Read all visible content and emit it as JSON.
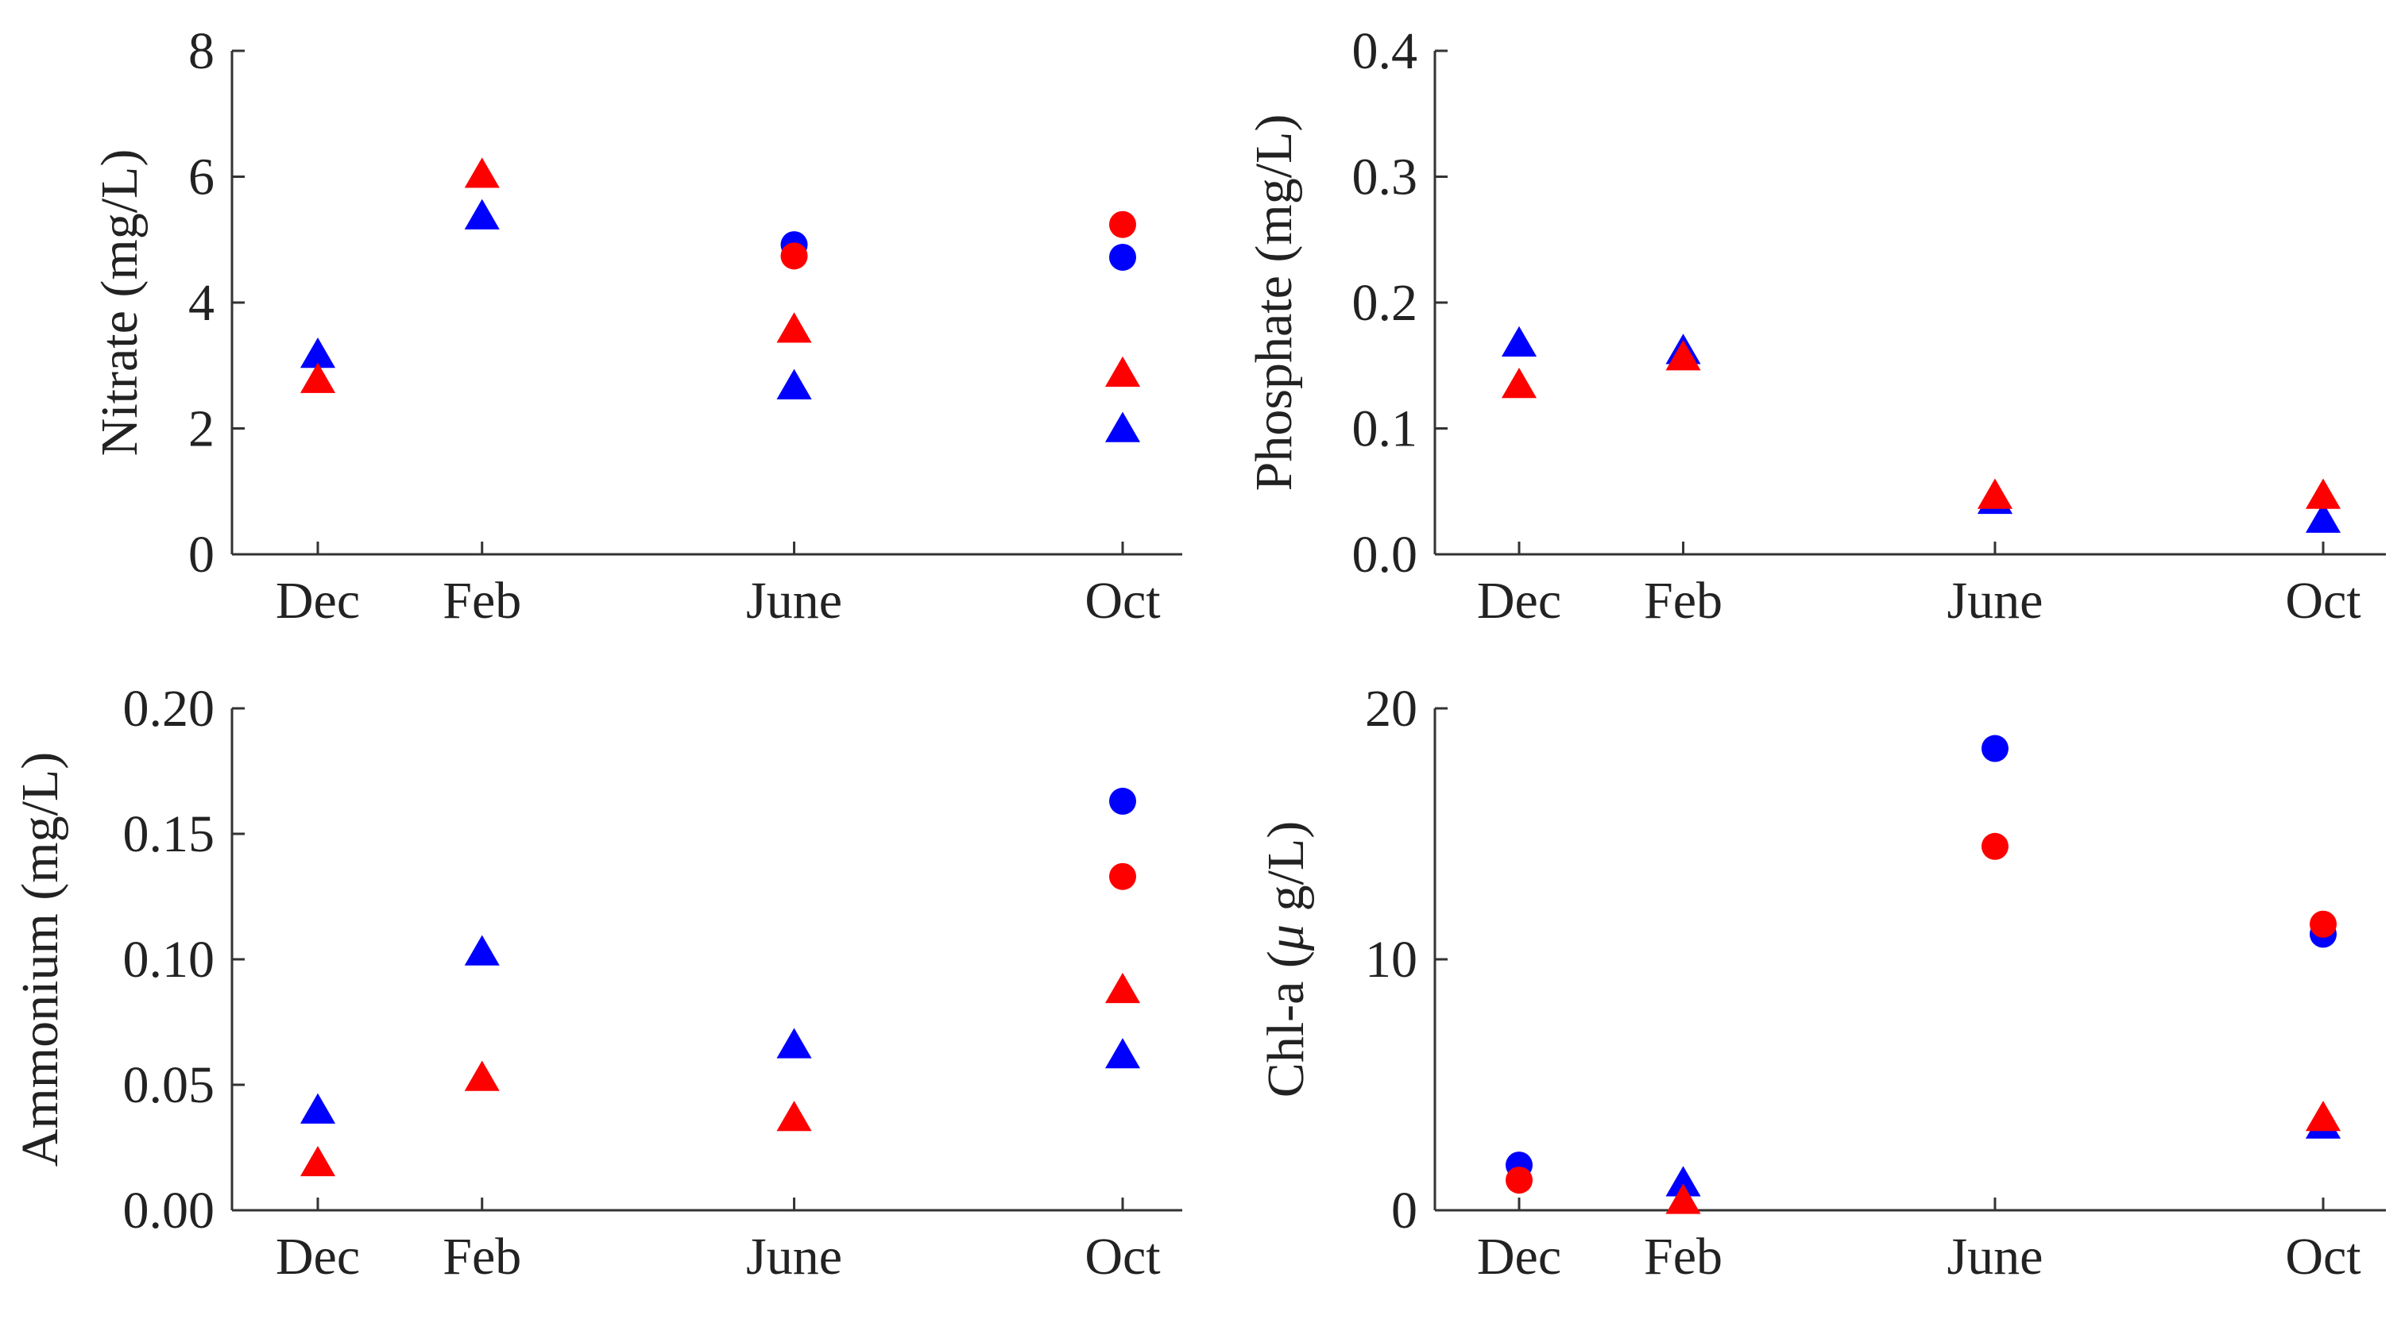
{
  "chart_data": [
    {
      "type": "scatter",
      "panel": "nitrate",
      "ylabel": "Nitrate (mg/L)",
      "ylabel_unit_italic": "",
      "categories": [
        "Dec",
        "Feb",
        "June",
        "Oct"
      ],
      "category_positions": [
        0,
        1,
        2.9,
        4.9
      ],
      "ylim": [
        0,
        8
      ],
      "yticks": [
        "0",
        "2",
        "4",
        "6",
        "8"
      ],
      "ytick_values": [
        0,
        2,
        4,
        6,
        8
      ],
      "series": [
        {
          "marker": "circle",
          "color": "#0000ff",
          "points": [
            [
              2.9,
              4.92
            ],
            [
              4.9,
              4.72
            ]
          ]
        },
        {
          "marker": "circle",
          "color": "#ff0000",
          "points": [
            [
              2.9,
              4.74
            ],
            [
              4.9,
              5.24
            ]
          ]
        },
        {
          "marker": "triangle",
          "color": "#0000ff",
          "points": [
            [
              0,
              3.18
            ],
            [
              1,
              5.38
            ],
            [
              2.9,
              2.68
            ],
            [
              4.9,
              2.0
            ]
          ]
        },
        {
          "marker": "triangle",
          "color": "#ff0000",
          "points": [
            [
              0,
              2.78
            ],
            [
              1,
              6.04
            ],
            [
              2.9,
              3.58
            ],
            [
              4.9,
              2.88
            ]
          ]
        }
      ]
    },
    {
      "type": "scatter",
      "panel": "phosphate",
      "ylabel": "Phosphate (mg/L)",
      "categories": [
        "Dec",
        "Feb",
        "June",
        "Oct"
      ],
      "category_positions": [
        0,
        1,
        2.9,
        4.9
      ],
      "ylim": [
        0,
        0.4
      ],
      "yticks": [
        "0.0",
        "0.1",
        "0.2",
        "0.3",
        "0.4"
      ],
      "ytick_values": [
        0,
        0.1,
        0.2,
        0.3,
        0.4
      ],
      "series": [
        {
          "marker": "triangle",
          "color": "#0000ff",
          "points": [
            [
              0,
              0.168
            ],
            [
              1,
              0.162
            ],
            [
              2.9,
              0.043
            ],
            [
              4.9,
              0.028
            ]
          ]
        },
        {
          "marker": "triangle",
          "color": "#ff0000",
          "points": [
            [
              0,
              0.135
            ],
            [
              1,
              0.157
            ],
            [
              2.9,
              0.047
            ],
            [
              4.9,
              0.047
            ]
          ]
        }
      ]
    },
    {
      "type": "scatter",
      "panel": "ammonium",
      "ylabel": "Ammonium (mg/L)",
      "categories": [
        "Dec",
        "Feb",
        "June",
        "Oct"
      ],
      "category_positions": [
        0,
        1,
        2.9,
        4.9
      ],
      "ylim": [
        0,
        0.2
      ],
      "yticks": [
        "0.00",
        "0.05",
        "0.10",
        "0.15",
        "0.20"
      ],
      "ytick_values": [
        0,
        0.05,
        0.1,
        0.15,
        0.2
      ],
      "series": [
        {
          "marker": "circle",
          "color": "#0000ff",
          "points": [
            [
              4.9,
              0.163
            ]
          ]
        },
        {
          "marker": "circle",
          "color": "#ff0000",
          "points": [
            [
              4.9,
              0.133
            ]
          ]
        },
        {
          "marker": "triangle",
          "color": "#0000ff",
          "points": [
            [
              0,
              0.04
            ],
            [
              1,
              0.103
            ],
            [
              2.9,
              0.066
            ],
            [
              4.9,
              0.062
            ]
          ]
        },
        {
          "marker": "triangle",
          "color": "#ff0000",
          "points": [
            [
              0,
              0.019
            ],
            [
              1,
              0.053
            ],
            [
              2.9,
              0.037
            ],
            [
              4.9,
              0.088
            ]
          ]
        }
      ]
    },
    {
      "type": "scatter",
      "panel": "chla",
      "ylabel": "Chl-a (",
      "ylabel_italic": "μ",
      "ylabel_tail": " g/L)",
      "categories": [
        "Dec",
        "Feb",
        "June",
        "Oct"
      ],
      "category_positions": [
        0,
        1,
        2.9,
        4.9
      ],
      "ylim": [
        0,
        20
      ],
      "yticks": [
        "0",
        "10",
        "20"
      ],
      "ytick_values": [
        0,
        10,
        20
      ],
      "series": [
        {
          "marker": "circle",
          "color": "#0000ff",
          "points": [
            [
              0,
              1.8
            ],
            [
              2.9,
              18.4
            ],
            [
              4.9,
              11.0
            ]
          ]
        },
        {
          "marker": "circle",
          "color": "#ff0000",
          "points": [
            [
              0,
              1.2
            ],
            [
              2.9,
              14.5
            ],
            [
              4.9,
              11.4
            ]
          ]
        },
        {
          "marker": "triangle",
          "color": "#0000ff",
          "points": [
            [
              1,
              1.1
            ],
            [
              4.9,
              3.4
            ]
          ]
        },
        {
          "marker": "triangle",
          "color": "#ff0000",
          "points": [
            [
              1,
              0.4
            ],
            [
              4.9,
              3.7
            ]
          ]
        }
      ]
    }
  ]
}
